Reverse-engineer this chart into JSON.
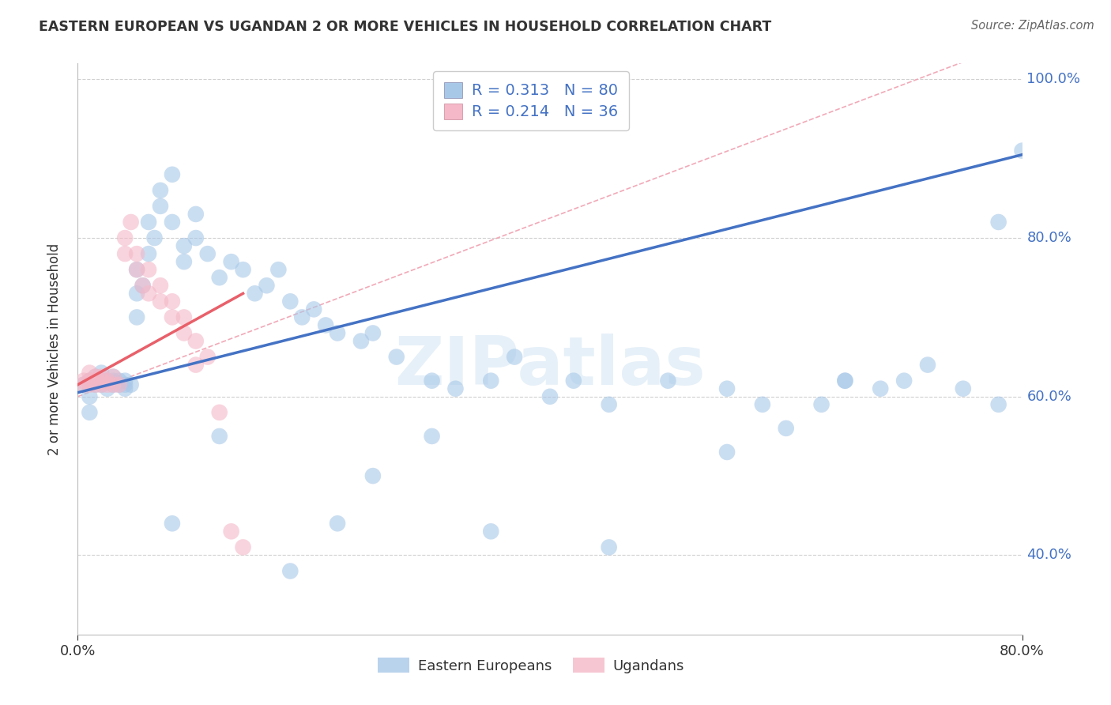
{
  "title": "EASTERN EUROPEAN VS UGANDAN 2 OR MORE VEHICLES IN HOUSEHOLD CORRELATION CHART",
  "source": "Source: ZipAtlas.com",
  "ylabel_label": "2 or more Vehicles in Household",
  "watermark": "ZIPatlas",
  "legend_blue_r": "0.313",
  "legend_blue_n": "80",
  "legend_pink_r": "0.214",
  "legend_pink_n": "36",
  "blue_color": "#a8c8e8",
  "pink_color": "#f4b8c8",
  "blue_line_color": "#4472c4",
  "pink_line_color": "#e8606a",
  "diag_line_color": "#f0b0b8",
  "grid_color": "#d0d0d0",
  "background_color": "#ffffff",
  "tick_color": "#4472c4",
  "blue_scatter_x": [
    0.005,
    0.01,
    0.01,
    0.01,
    0.015,
    0.015,
    0.02,
    0.02,
    0.02,
    0.025,
    0.025,
    0.03,
    0.03,
    0.03,
    0.035,
    0.035,
    0.04,
    0.04,
    0.04,
    0.045,
    0.05,
    0.05,
    0.05,
    0.055,
    0.06,
    0.06,
    0.065,
    0.07,
    0.07,
    0.08,
    0.08,
    0.09,
    0.09,
    0.1,
    0.1,
    0.11,
    0.12,
    0.13,
    0.14,
    0.15,
    0.16,
    0.17,
    0.18,
    0.19,
    0.2,
    0.21,
    0.22,
    0.24,
    0.25,
    0.27,
    0.3,
    0.32,
    0.35,
    0.37,
    0.4,
    0.42,
    0.45,
    0.5,
    0.55,
    0.58,
    0.6,
    0.63,
    0.65,
    0.68,
    0.7,
    0.72,
    0.75,
    0.78,
    0.78,
    0.8,
    0.25,
    0.3,
    0.18,
    0.22,
    0.12,
    0.08,
    0.35,
    0.45,
    0.55,
    0.65
  ],
  "blue_scatter_y": [
    0.615,
    0.58,
    0.6,
    0.62,
    0.615,
    0.625,
    0.615,
    0.62,
    0.63,
    0.61,
    0.62,
    0.615,
    0.62,
    0.625,
    0.615,
    0.62,
    0.61,
    0.615,
    0.62,
    0.615,
    0.7,
    0.73,
    0.76,
    0.74,
    0.78,
    0.82,
    0.8,
    0.84,
    0.86,
    0.88,
    0.82,
    0.79,
    0.77,
    0.83,
    0.8,
    0.78,
    0.75,
    0.77,
    0.76,
    0.73,
    0.74,
    0.76,
    0.72,
    0.7,
    0.71,
    0.69,
    0.68,
    0.67,
    0.68,
    0.65,
    0.62,
    0.61,
    0.62,
    0.65,
    0.6,
    0.62,
    0.59,
    0.62,
    0.61,
    0.59,
    0.56,
    0.59,
    0.62,
    0.61,
    0.62,
    0.64,
    0.61,
    0.59,
    0.82,
    0.91,
    0.5,
    0.55,
    0.38,
    0.44,
    0.55,
    0.44,
    0.43,
    0.41,
    0.53,
    0.62
  ],
  "pink_scatter_x": [
    0.005,
    0.005,
    0.01,
    0.01,
    0.01,
    0.015,
    0.015,
    0.015,
    0.02,
    0.02,
    0.02,
    0.025,
    0.025,
    0.03,
    0.03,
    0.035,
    0.04,
    0.04,
    0.045,
    0.05,
    0.05,
    0.055,
    0.06,
    0.06,
    0.07,
    0.07,
    0.08,
    0.08,
    0.09,
    0.09,
    0.1,
    0.1,
    0.11,
    0.12,
    0.13,
    0.14
  ],
  "pink_scatter_y": [
    0.615,
    0.62,
    0.615,
    0.62,
    0.63,
    0.615,
    0.62,
    0.625,
    0.615,
    0.62,
    0.625,
    0.615,
    0.62,
    0.615,
    0.625,
    0.615,
    0.78,
    0.8,
    0.82,
    0.76,
    0.78,
    0.74,
    0.76,
    0.73,
    0.72,
    0.74,
    0.7,
    0.72,
    0.68,
    0.7,
    0.64,
    0.67,
    0.65,
    0.58,
    0.43,
    0.41
  ],
  "xlim": [
    0.0,
    0.8
  ],
  "ylim": [
    0.3,
    1.02
  ],
  "x_ticks": [
    0.0,
    0.8
  ],
  "x_tick_labels": [
    "0.0%",
    "80.0%"
  ],
  "y_ticks": [
    0.4,
    0.6,
    0.8,
    1.0
  ],
  "y_tick_labels": [
    "40.0%",
    "60.0%",
    "80.0%",
    "100.0%"
  ],
  "figsize": [
    14.06,
    8.92
  ],
  "dpi": 100
}
